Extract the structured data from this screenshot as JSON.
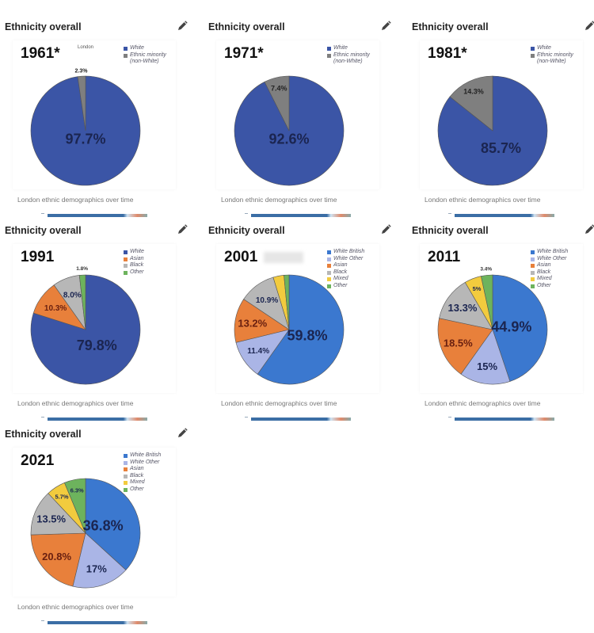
{
  "card_title": "Ethnicity overall",
  "caption": "London ethnic demographics over time",
  "icons": {
    "edit": "pencil-icon"
  },
  "colors": {
    "white_dark": "#3b55a6",
    "white_british": "#3b78cf",
    "white_other": "#aab5e6",
    "asian": "#e8803b",
    "black": "#b7b7b7",
    "mixed": "#f2cb3e",
    "other": "#6db35d",
    "minority": "#7f7f7f"
  },
  "chart_data": [
    {
      "type": "pie",
      "title": "1961*",
      "subtitle": "London",
      "series": [
        {
          "name": "White",
          "value": 97.7,
          "label": "97.7%",
          "color": "#3b55a6"
        },
        {
          "name": "Ethnic minority (non-White)",
          "value": 2.3,
          "label": "2.3%",
          "color": "#7f7f7f"
        }
      ]
    },
    {
      "type": "pie",
      "title": "1971*",
      "series": [
        {
          "name": "White",
          "value": 92.6,
          "label": "92.6%",
          "color": "#3b55a6"
        },
        {
          "name": "Ethnic minority (non-White)",
          "value": 7.4,
          "label": "7.4%",
          "color": "#7f7f7f"
        }
      ]
    },
    {
      "type": "pie",
      "title": "1981*",
      "series": [
        {
          "name": "White",
          "value": 85.7,
          "label": "85.7%",
          "color": "#3b55a6"
        },
        {
          "name": "Ethnic minority (non-White)",
          "value": 14.3,
          "label": "14.3%",
          "color": "#7f7f7f"
        }
      ]
    },
    {
      "type": "pie",
      "title": "1991",
      "series": [
        {
          "name": "White",
          "value": 79.8,
          "label": "79.8%",
          "color": "#3b55a6"
        },
        {
          "name": "Asian",
          "value": 10.3,
          "label": "10.3%",
          "color": "#e8803b"
        },
        {
          "name": "Black",
          "value": 8.0,
          "label": "8.0%",
          "color": "#b7b7b7"
        },
        {
          "name": "Other",
          "value": 1.8,
          "label": "1.8%",
          "color": "#6db35d"
        }
      ]
    },
    {
      "type": "pie",
      "title": "2001",
      "series": [
        {
          "name": "White British",
          "value": 59.8,
          "label": "59.8%",
          "color": "#3b78cf"
        },
        {
          "name": "White Other",
          "value": 11.4,
          "label": "11.4%",
          "color": "#aab5e6"
        },
        {
          "name": "Asian",
          "value": 13.2,
          "label": "13.2%",
          "color": "#e8803b"
        },
        {
          "name": "Black",
          "value": 10.9,
          "label": "10.9%",
          "color": "#b7b7b7"
        },
        {
          "name": "Mixed",
          "value": 3.2,
          "label": "",
          "color": "#f2cb3e"
        },
        {
          "name": "Other",
          "value": 1.5,
          "label": "",
          "color": "#6db35d"
        }
      ]
    },
    {
      "type": "pie",
      "title": "2011",
      "series": [
        {
          "name": "White British",
          "value": 44.9,
          "label": "44.9%",
          "color": "#3b78cf"
        },
        {
          "name": "White Other",
          "value": 15,
          "label": "15%",
          "color": "#aab5e6"
        },
        {
          "name": "Asian",
          "value": 18.5,
          "label": "18.5%",
          "color": "#e8803b"
        },
        {
          "name": "Black",
          "value": 13.3,
          "label": "13.3%",
          "color": "#b7b7b7"
        },
        {
          "name": "Mixed",
          "value": 5,
          "label": "5%",
          "color": "#f2cb3e"
        },
        {
          "name": "Other",
          "value": 3.4,
          "label": "3.4%",
          "color": "#6db35d"
        }
      ]
    },
    {
      "type": "pie",
      "title": "2021",
      "series": [
        {
          "name": "White British",
          "value": 36.8,
          "label": "36.8%",
          "color": "#3b78cf"
        },
        {
          "name": "White Other",
          "value": 17,
          "label": "17%",
          "color": "#aab5e6"
        },
        {
          "name": "Asian",
          "value": 20.8,
          "label": "20.8%",
          "color": "#e8803b"
        },
        {
          "name": "Black",
          "value": 13.5,
          "label": "13.5%",
          "color": "#b7b7b7"
        },
        {
          "name": "Mixed",
          "value": 5.7,
          "label": "5.7%",
          "color": "#f2cb3e"
        },
        {
          "name": "Other",
          "value": 6.3,
          "label": "6.3%",
          "color": "#6db35d"
        }
      ]
    }
  ]
}
